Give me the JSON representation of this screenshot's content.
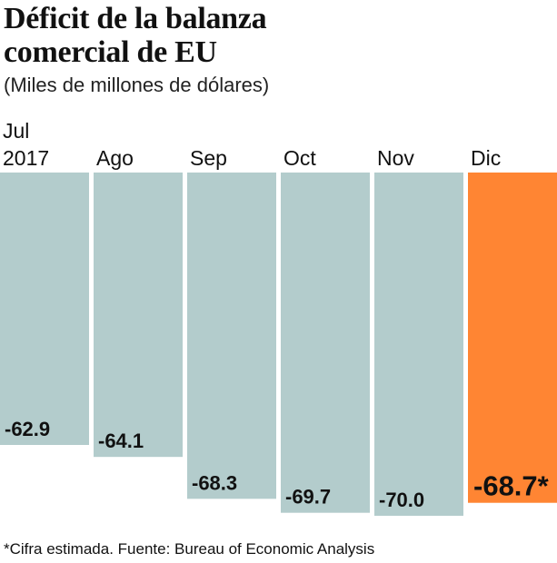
{
  "title_line1": "Déficit de la balanza",
  "title_line2": "comercial de EU",
  "subtitle": "(Miles de millones de dólares)",
  "footnote": "*Cifra estimada. Fuente: Bureau of Economic Analysis",
  "colors": {
    "bar": "#b3cccc",
    "highlight": "#ff8533",
    "text": "#111111"
  },
  "chart_data": {
    "type": "bar",
    "orientation": "vertical-hanging",
    "categories": [
      [
        "Jul",
        "2017"
      ],
      [
        "Ago"
      ],
      [
        "Sep"
      ],
      [
        "Oct"
      ],
      [
        "Nov"
      ],
      [
        "Dic"
      ]
    ],
    "values": [
      -62.9,
      -64.1,
      -68.3,
      -69.7,
      -70.0,
      -68.7
    ],
    "value_labels": [
      "-62.9",
      "-64.1",
      "-68.3",
      "-69.7",
      "-70.0",
      "-68.7*"
    ],
    "highlight_index": 5,
    "ylim": [
      -70.0,
      0
    ],
    "grid": false,
    "legend": "none"
  }
}
